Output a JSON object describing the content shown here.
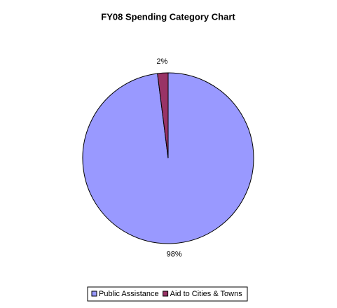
{
  "chart_data": {
    "type": "pie",
    "title": "FY08 Spending Category Chart",
    "categories": [
      "Public Assistance",
      "Aid to Cities & Towns"
    ],
    "values": [
      98,
      2
    ],
    "value_labels": [
      "98%",
      "2%"
    ],
    "colors": [
      "#9999ff",
      "#993366"
    ]
  }
}
